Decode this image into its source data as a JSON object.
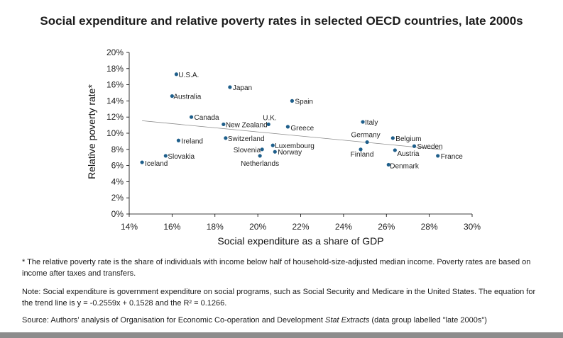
{
  "chart_data": {
    "type": "scatter",
    "title": "Social expenditure and relative poverty rates in selected OECD countries, late 2000s",
    "xlabel": "Social expenditure as a share of GDP",
    "ylabel": "Relative poverty rate*",
    "xlim": [
      0.14,
      0.3
    ],
    "ylim": [
      0.0,
      0.2
    ],
    "x_ticks": [
      "14%",
      "16%",
      "18%",
      "20%",
      "22%",
      "24%",
      "26%",
      "28%",
      "30%"
    ],
    "y_ticks": [
      "0%",
      "2%",
      "4%",
      "6%",
      "8%",
      "10%",
      "12%",
      "14%",
      "16%",
      "18%",
      "20%"
    ],
    "grid": false,
    "point_color": "#1f5f8b",
    "trendline": {
      "slope": -0.2559,
      "intercept": 0.1528
    },
    "points": [
      {
        "label": "U.S.A.",
        "x": 0.162,
        "y": 0.173
      },
      {
        "label": "Australia",
        "x": 0.16,
        "y": 0.146
      },
      {
        "label": "Japan",
        "x": 0.187,
        "y": 0.157
      },
      {
        "label": "Spain",
        "x": 0.216,
        "y": 0.14
      },
      {
        "label": "Canada",
        "x": 0.169,
        "y": 0.12
      },
      {
        "label": "U.K.",
        "x": 0.205,
        "y": 0.111
      },
      {
        "label": "New Zealand",
        "x": 0.184,
        "y": 0.111
      },
      {
        "label": "Greece",
        "x": 0.214,
        "y": 0.108
      },
      {
        "label": "Italy",
        "x": 0.249,
        "y": 0.114
      },
      {
        "label": "Switzerland",
        "x": 0.185,
        "y": 0.094
      },
      {
        "label": "Ireland",
        "x": 0.163,
        "y": 0.091
      },
      {
        "label": "Luxembourg",
        "x": 0.207,
        "y": 0.085
      },
      {
        "label": "Slovenia",
        "x": 0.202,
        "y": 0.08
      },
      {
        "label": "Norway",
        "x": 0.208,
        "y": 0.077
      },
      {
        "label": "Netherlands",
        "x": 0.201,
        "y": 0.072
      },
      {
        "label": "Slovakia",
        "x": 0.157,
        "y": 0.072
      },
      {
        "label": "Iceland",
        "x": 0.146,
        "y": 0.064
      },
      {
        "label": "Germany",
        "x": 0.251,
        "y": 0.089
      },
      {
        "label": "Finland",
        "x": 0.248,
        "y": 0.08
      },
      {
        "label": "Belgium",
        "x": 0.263,
        "y": 0.094
      },
      {
        "label": "Sweden",
        "x": 0.273,
        "y": 0.084
      },
      {
        "label": "Austria",
        "x": 0.264,
        "y": 0.079
      },
      {
        "label": "France",
        "x": 0.284,
        "y": 0.072
      },
      {
        "label": "Denmark",
        "x": 0.261,
        "y": 0.061
      }
    ]
  },
  "notes": {
    "poverty_rate": "* The relative poverty rate is the share of individuals with income below half of household-size-adjusted median income. Poverty rates are based on income after taxes and transfers.",
    "note": "Note: Social expenditure is government expenditure on social programs, such as Social Security and Medicare in the United States. The equation for the trend line is y = -0.2559x + 0.1528 and the R² = 0.1266.",
    "source_prefix": "Source: Authors’ analysis of Organisation for Economic Co-operation and Development ",
    "source_italic": "Stat Extracts",
    "source_suffix": " (data group labelled \"late 2000s\")"
  }
}
